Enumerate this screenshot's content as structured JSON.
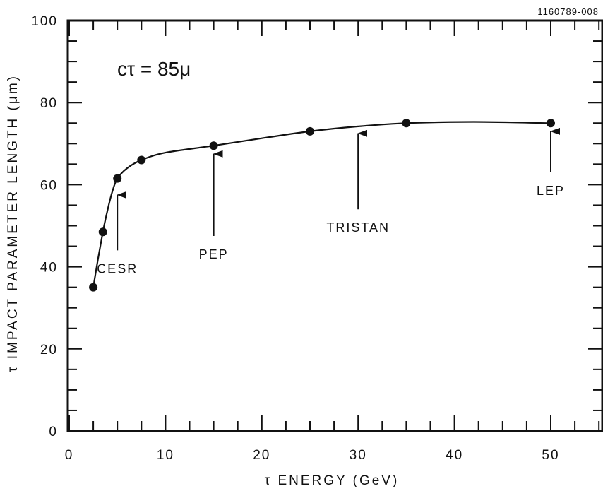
{
  "chart_data": {
    "type": "line",
    "figure_id": "1160789-008",
    "title": "",
    "xlabel": "τ  ENERGY (GeV)",
    "ylabel": "τ  IMPACT PARAMETER LENGTH (μm)",
    "xlim": [
      0,
      55
    ],
    "ylim": [
      0,
      100
    ],
    "x_ticks": [
      0,
      10,
      20,
      30,
      40,
      50
    ],
    "y_ticks": [
      0,
      20,
      40,
      60,
      80,
      100
    ],
    "grid": false,
    "legend": "none",
    "formula": "cτ = 85μ",
    "series": [
      {
        "name": "",
        "x": [
          2.5,
          3.5,
          5.0,
          7.5,
          15.0,
          25.0,
          35.0,
          50.0
        ],
        "y": [
          35.0,
          48.5,
          61.5,
          66.0,
          69.5,
          73.0,
          75.0,
          75.0
        ],
        "marker": "filled-circle"
      }
    ],
    "curve": [
      [
        2.5,
        35.0
      ],
      [
        3.0,
        42.0
      ],
      [
        3.5,
        48.5
      ],
      [
        4.0,
        54.0
      ],
      [
        4.5,
        58.5
      ],
      [
        5.0,
        61.5
      ],
      [
        6.0,
        64.0
      ],
      [
        7.5,
        66.0
      ],
      [
        10.0,
        67.8
      ],
      [
        15.0,
        69.5
      ],
      [
        20.0,
        71.3
      ],
      [
        25.0,
        73.0
      ],
      [
        30.0,
        74.2
      ],
      [
        35.0,
        75.0
      ],
      [
        42.0,
        75.3
      ],
      [
        50.0,
        75.0
      ]
    ],
    "annotations": [
      {
        "text": "CESR",
        "x": 5.0,
        "arrow_tip_y": 57.5,
        "arrow_tail_y": 44.0,
        "label_y": 38.5
      },
      {
        "text": "PEP",
        "x": 15.0,
        "arrow_tip_y": 67.5,
        "arrow_tail_y": 47.5,
        "label_y": 42.0
      },
      {
        "text": "TRISTAN",
        "x": 30.0,
        "arrow_tip_y": 72.5,
        "arrow_tail_y": 54.0,
        "label_y": 48.5
      },
      {
        "text": "LEP",
        "x": 50.0,
        "arrow_tip_y": 73.0,
        "arrow_tail_y": 63.0,
        "label_y": 57.5
      }
    ]
  }
}
